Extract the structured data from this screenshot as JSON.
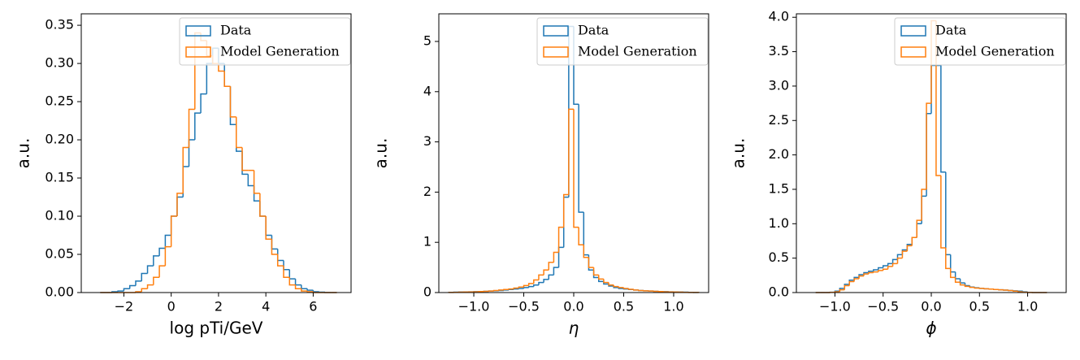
{
  "chart_data": [
    {
      "type": "histogram",
      "xlabel": "log pTi/GeV",
      "ylabel": "a.u.",
      "bins": [
        -3,
        -2.75,
        -2.5,
        -2.25,
        -2,
        -1.75,
        -1.5,
        -1.25,
        -1,
        -0.75,
        -0.5,
        -0.25,
        0,
        0.25,
        0.5,
        0.75,
        1,
        1.25,
        1.5,
        1.75,
        2,
        2.25,
        2.5,
        2.75,
        3,
        3.25,
        3.5,
        3.75,
        4,
        4.25,
        4.5,
        4.75,
        5,
        5.25,
        5.5,
        5.75,
        6,
        6.25,
        6.5,
        6.75,
        7
      ],
      "series": [
        {
          "name": "Data",
          "color": "#1f77b4",
          "values": [
            0,
            0,
            0.001,
            0.002,
            0.005,
            0.009,
            0.015,
            0.025,
            0.035,
            0.048,
            0.058,
            0.075,
            0.1,
            0.125,
            0.165,
            0.2,
            0.235,
            0.26,
            0.3,
            0.32,
            0.3,
            0.27,
            0.22,
            0.185,
            0.155,
            0.14,
            0.12,
            0.1,
            0.075,
            0.057,
            0.042,
            0.03,
            0.018,
            0.01,
            0.005,
            0.003,
            0.001,
            0.0005,
            0,
            0
          ]
        },
        {
          "name": "Model Generation",
          "color": "#ff7f0e",
          "values": [
            0,
            0,
            0,
            0,
            0,
            0,
            0.001,
            0.005,
            0.01,
            0.02,
            0.035,
            0.06,
            0.1,
            0.13,
            0.19,
            0.24,
            0.34,
            0.33,
            0.31,
            0.3,
            0.29,
            0.27,
            0.23,
            0.19,
            0.16,
            0.16,
            0.13,
            0.1,
            0.07,
            0.05,
            0.035,
            0.02,
            0.01,
            0.005,
            0.002,
            0.001,
            0,
            0,
            0,
            0
          ]
        }
      ],
      "xlim": [
        -3.8,
        7.6
      ],
      "ylim": [
        0,
        0.365
      ],
      "xticks": [
        {
          "value": -2,
          "label": "−2"
        },
        0,
        2,
        4,
        6
      ],
      "yticks": [
        {
          "value": 0,
          "label": "0.00"
        },
        0.05,
        {
          "value": 0.1,
          "label": "0.10"
        },
        0.15,
        {
          "value": 0.2,
          "label": "0.20"
        },
        0.25,
        {
          "value": 0.3,
          "label": "0.30"
        },
        0.35
      ],
      "legend": "upper right"
    },
    {
      "type": "histogram",
      "xlabel": "η",
      "ylabel": "a.u.",
      "bins": [
        -1.25,
        -1.2,
        -1.15,
        -1.1,
        -1.05,
        -1,
        -0.95,
        -0.9,
        -0.85,
        -0.8,
        -0.75,
        -0.7,
        -0.65,
        -0.6,
        -0.55,
        -0.5,
        -0.45,
        -0.4,
        -0.35,
        -0.3,
        -0.25,
        -0.2,
        -0.15,
        -0.1,
        -0.05,
        0,
        0.05,
        0.1,
        0.15,
        0.2,
        0.25,
        0.3,
        0.35,
        0.4,
        0.45,
        0.5,
        0.55,
        0.6,
        0.65,
        0.7,
        0.75,
        0.8,
        0.85,
        0.9,
        0.95,
        1,
        1.05,
        1.1,
        1.15,
        1.2,
        1.25
      ],
      "series": [
        {
          "name": "Data",
          "color": "#1f77b4",
          "values": [
            0.005,
            0.008,
            0.01,
            0.012,
            0.015,
            0.018,
            0.02,
            0.025,
            0.03,
            0.035,
            0.04,
            0.05,
            0.06,
            0.07,
            0.08,
            0.1,
            0.12,
            0.15,
            0.2,
            0.26,
            0.35,
            0.5,
            0.9,
            1.9,
            5.3,
            3.75,
            1.6,
            0.75,
            0.45,
            0.3,
            0.22,
            0.17,
            0.13,
            0.1,
            0.08,
            0.07,
            0.06,
            0.05,
            0.04,
            0.035,
            0.03,
            0.025,
            0.02,
            0.018,
            0.015,
            0.012,
            0.01,
            0.008,
            0.005,
            0.003
          ]
        },
        {
          "name": "Model Generation",
          "color": "#ff7f0e",
          "values": [
            0.003,
            0.005,
            0.008,
            0.01,
            0.012,
            0.015,
            0.02,
            0.025,
            0.03,
            0.04,
            0.05,
            0.06,
            0.07,
            0.09,
            0.11,
            0.14,
            0.18,
            0.25,
            0.35,
            0.45,
            0.6,
            0.8,
            1.3,
            1.95,
            3.65,
            1.3,
            0.95,
            0.7,
            0.5,
            0.35,
            0.27,
            0.2,
            0.15,
            0.12,
            0.1,
            0.08,
            0.065,
            0.05,
            0.04,
            0.035,
            0.03,
            0.025,
            0.02,
            0.015,
            0.012,
            0.01,
            0.008,
            0.005,
            0.003,
            0.002
          ]
        }
      ],
      "xlim": [
        -1.35,
        1.35
      ],
      "ylim": [
        0,
        5.55
      ],
      "xticks": [
        {
          "value": -1,
          "label": "−1.0"
        },
        {
          "value": -0.5,
          "label": "−0.5"
        },
        {
          "value": 0,
          "label": "0.0"
        },
        0.5,
        {
          "value": 1,
          "label": "1.0"
        }
      ],
      "yticks": [
        0,
        1,
        2,
        3,
        4,
        5
      ],
      "legend": "upper right"
    },
    {
      "type": "histogram",
      "xlabel": "ϕ",
      "ylabel": "a.u.",
      "bins": [
        -1.2,
        -1.15,
        -1.1,
        -1.05,
        -1,
        -0.95,
        -0.9,
        -0.85,
        -0.8,
        -0.75,
        -0.7,
        -0.65,
        -0.6,
        -0.55,
        -0.5,
        -0.45,
        -0.4,
        -0.35,
        -0.3,
        -0.25,
        -0.2,
        -0.15,
        -0.1,
        -0.05,
        0,
        0.05,
        0.1,
        0.15,
        0.2,
        0.25,
        0.3,
        0.35,
        0.4,
        0.45,
        0.5,
        0.55,
        0.6,
        0.65,
        0.7,
        0.75,
        0.8,
        0.85,
        0.9,
        0.95,
        1,
        1.05,
        1.1,
        1.15,
        1.2
      ],
      "series": [
        {
          "name": "Data",
          "color": "#1f77b4",
          "values": [
            0,
            0,
            0,
            0.005,
            0.02,
            0.06,
            0.12,
            0.18,
            0.22,
            0.26,
            0.29,
            0.31,
            0.33,
            0.36,
            0.39,
            0.42,
            0.48,
            0.55,
            0.62,
            0.7,
            0.8,
            1.0,
            1.4,
            2.6,
            3.3,
            3.3,
            1.75,
            0.55,
            0.3,
            0.2,
            0.14,
            0.1,
            0.08,
            0.07,
            0.06,
            0.055,
            0.05,
            0.045,
            0.04,
            0.035,
            0.03,
            0.025,
            0.02,
            0.01,
            0.003,
            0,
            0,
            0
          ]
        },
        {
          "name": "Model Generation",
          "color": "#ff7f0e",
          "values": [
            0,
            0,
            0,
            0.003,
            0.01,
            0.04,
            0.1,
            0.16,
            0.2,
            0.24,
            0.27,
            0.29,
            0.3,
            0.32,
            0.34,
            0.38,
            0.42,
            0.5,
            0.6,
            0.68,
            0.8,
            1.05,
            1.5,
            2.75,
            3.95,
            1.7,
            0.65,
            0.35,
            0.22,
            0.15,
            0.11,
            0.09,
            0.075,
            0.065,
            0.06,
            0.055,
            0.05,
            0.045,
            0.04,
            0.035,
            0.03,
            0.02,
            0.01,
            0.005,
            0.001,
            0,
            0,
            0
          ]
        }
      ],
      "xlim": [
        -1.4,
        1.4
      ],
      "ylim": [
        0,
        4.05
      ],
      "xticks": [
        {
          "value": -1,
          "label": "−1.0"
        },
        {
          "value": -0.5,
          "label": "−0.5"
        },
        {
          "value": 0,
          "label": "0.0"
        },
        0.5,
        {
          "value": 1,
          "label": "1.0"
        }
      ],
      "yticks": [
        {
          "value": 0,
          "label": "0.0"
        },
        0.5,
        {
          "value": 1,
          "label": "1.0"
        },
        1.5,
        {
          "value": 2,
          "label": "2.0"
        },
        2.5,
        {
          "value": 3,
          "label": "3.0"
        },
        3.5,
        {
          "value": 4,
          "label": "4.0"
        }
      ],
      "legend": "upper right"
    }
  ]
}
